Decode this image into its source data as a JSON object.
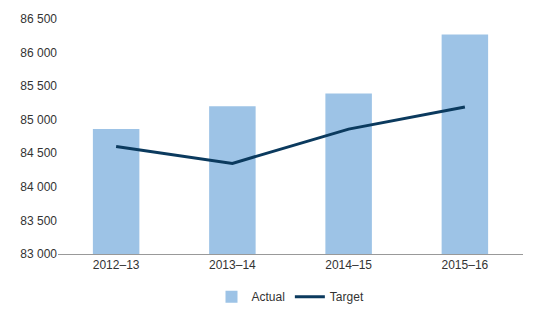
{
  "chart_data": {
    "type": "bar",
    "categories": [
      "2012–13",
      "2013–14",
      "2014–15",
      "2015–16"
    ],
    "series": [
      {
        "name": "Actual",
        "type": "bar",
        "color": "#9dc3e6",
        "values": [
          84860,
          85200,
          85390,
          86270
        ]
      },
      {
        "name": "Target",
        "type": "line",
        "color": "#0b3a5e",
        "values": [
          84600,
          84350,
          84860,
          85190
        ]
      }
    ],
    "ylim": [
      83000,
      86500
    ],
    "yticks": [
      {
        "value": 83000,
        "label": "83 000"
      },
      {
        "value": 83500,
        "label": "83 500"
      },
      {
        "value": 84000,
        "label": "84 000"
      },
      {
        "value": 84500,
        "label": "84 500"
      },
      {
        "value": 85000,
        "label": "85 000"
      },
      {
        "value": 85500,
        "label": "85 500"
      },
      {
        "value": 86000,
        "label": "86 000"
      },
      {
        "value": 86500,
        "label": "86 500"
      }
    ],
    "grid": false,
    "legend": "bottom"
  }
}
